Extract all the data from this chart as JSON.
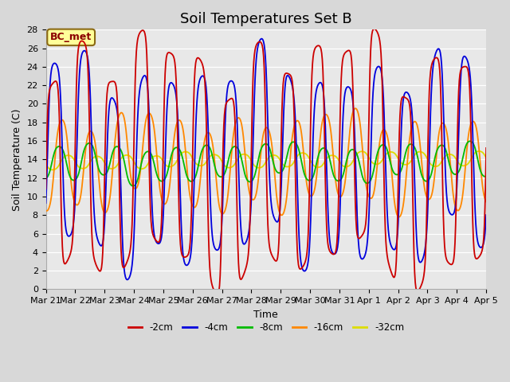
{
  "title": "Soil Temperatures Set B",
  "xlabel": "Time",
  "ylabel": "Soil Temperature (C)",
  "ylim": [
    0,
    28
  ],
  "yticks": [
    0,
    2,
    4,
    6,
    8,
    10,
    12,
    14,
    16,
    18,
    20,
    22,
    24,
    26,
    28
  ],
  "xtick_labels": [
    "Mar 21",
    "Mar 22",
    "Mar 23",
    "Mar 24",
    "Mar 25",
    "Mar 26",
    "Mar 27",
    "Mar 28",
    "Mar 29",
    "Mar 30",
    "Mar 31",
    "Apr 1",
    "Apr 2",
    "Apr 3",
    "Apr 4",
    "Apr 5"
  ],
  "legend_labels": [
    "-2cm",
    "-4cm",
    "-8cm",
    "-16cm",
    "-32cm"
  ],
  "legend_colors": [
    "#cc0000",
    "#0000dd",
    "#00bb00",
    "#ff8800",
    "#dddd00"
  ],
  "annotation_text": "BC_met",
  "bg_color": "#e8e8e8",
  "grid_color": "#ffffff",
  "title_fontsize": 13,
  "label_fontsize": 9,
  "tick_fontsize": 8
}
